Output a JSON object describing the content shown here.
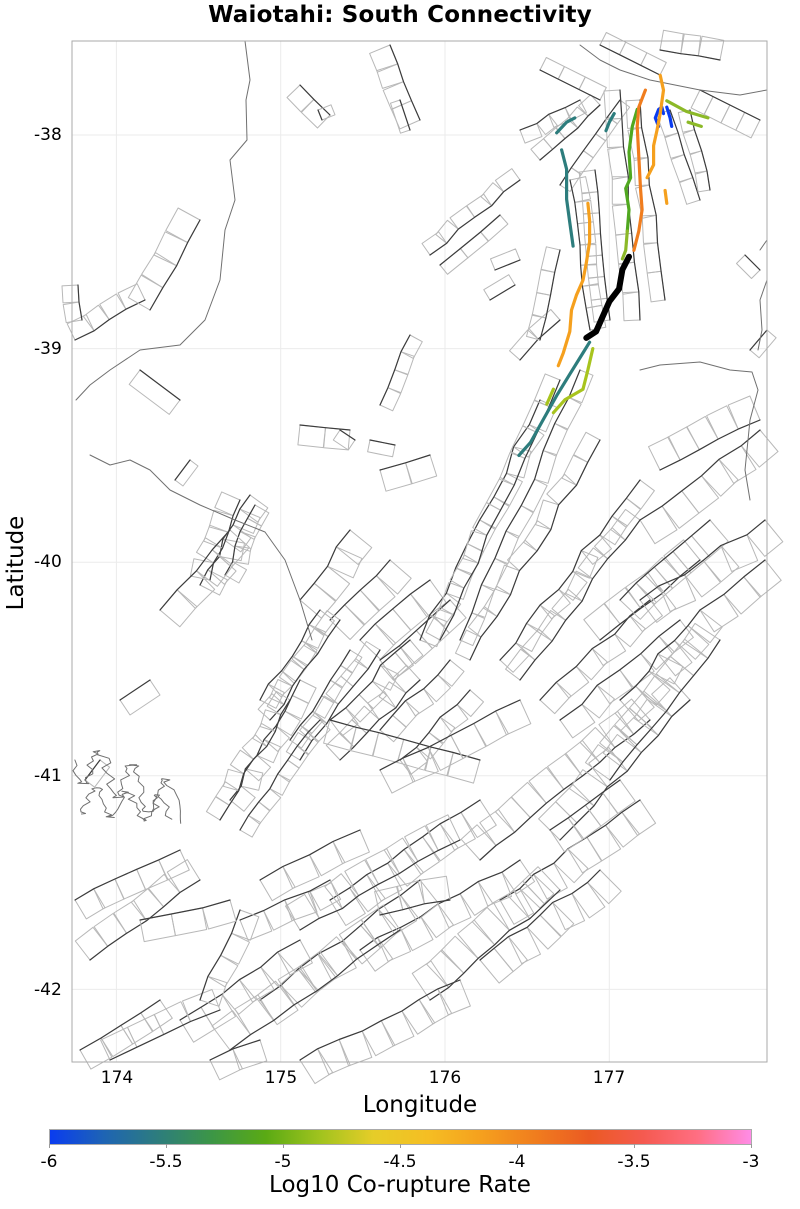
{
  "title": "Waiotahi: South Connectivity",
  "chart_data": {
    "type": "map",
    "title": "Waiotahi: South Connectivity",
    "xlabel": "Longitude",
    "ylabel": "Latitude",
    "xlim": [
      173.73,
      177.96
    ],
    "ylim": [
      -42.34,
      -37.56
    ],
    "x_ticks": [
      "174",
      "175",
      "176",
      "177"
    ],
    "x_tick_values": [
      174,
      175,
      176,
      177
    ],
    "y_ticks": [
      "-38",
      "-39",
      "-40",
      "-41",
      "-42"
    ],
    "y_tick_values": [
      -38,
      -39,
      -40,
      -41,
      -42
    ],
    "grid": true,
    "colorbar": {
      "label": "Log10 Co-rupture Rate",
      "range": [
        -6,
        -3
      ],
      "ticks": [
        "-6",
        "-5.5",
        "-5",
        "-4.5",
        "-4",
        "-3.5",
        "-3"
      ],
      "tick_values": [
        -6,
        -5.5,
        -5,
        -4.5,
        -4,
        -3.5,
        -3
      ],
      "colors": [
        "#0a3cf0",
        "#1e64b4",
        "#2d7d7d",
        "#3c9646",
        "#5aaa14",
        "#a0c31e",
        "#e6cd28",
        "#f5be23",
        "#f5a01e",
        "#f07d1e",
        "#eb5a23",
        "#f55a50",
        "#ff6e82",
        "#ff8ce6"
      ],
      "position": "bottom"
    },
    "source_fault": {
      "name": "Waiotahi",
      "color": "#000000",
      "trace": [
        [
          177.12,
          -38.57
        ],
        [
          177.08,
          -38.63
        ],
        [
          177.06,
          -38.72
        ],
        [
          177.0,
          -38.78
        ],
        [
          176.96,
          -38.85
        ],
        [
          176.92,
          -38.92
        ],
        [
          176.86,
          -38.95
        ]
      ]
    },
    "corupture_segments": [
      {
        "log_rate": -5.9,
        "color": "#0a3cf0",
        "trace": [
          [
            177.3,
            -37.96
          ],
          [
            177.28,
            -37.92
          ],
          [
            177.3,
            -37.88
          ],
          [
            177.32,
            -37.87
          ],
          [
            177.33,
            -37.9
          ]
        ]
      },
      {
        "log_rate": -5.9,
        "color": "#0a3cf0",
        "trace": [
          [
            177.35,
            -37.87
          ],
          [
            177.37,
            -37.92
          ],
          [
            177.38,
            -37.96
          ]
        ]
      },
      {
        "log_rate": -5.6,
        "color": "#2d7d7d",
        "trace": [
          [
            176.68,
            -37.99
          ],
          [
            176.74,
            -37.94
          ],
          [
            176.79,
            -37.92
          ]
        ]
      },
      {
        "log_rate": -5.6,
        "color": "#2d7d7d",
        "trace": [
          [
            176.98,
            -37.98
          ],
          [
            177.0,
            -37.94
          ],
          [
            177.03,
            -37.9
          ]
        ]
      },
      {
        "log_rate": -5.5,
        "color": "#2d7d7d",
        "trace": [
          [
            176.71,
            -38.07
          ],
          [
            176.74,
            -38.16
          ],
          [
            176.74,
            -38.3
          ],
          [
            176.76,
            -38.41
          ],
          [
            176.78,
            -38.52
          ]
        ]
      },
      {
        "log_rate": -5.5,
        "color": "#2d7d7d",
        "trace": [
          [
            176.88,
            -38.97
          ],
          [
            176.84,
            -39.02
          ],
          [
            176.76,
            -39.12
          ],
          [
            176.68,
            -39.22
          ],
          [
            176.6,
            -39.33
          ],
          [
            176.52,
            -39.44
          ],
          [
            176.45,
            -39.5
          ]
        ]
      },
      {
        "log_rate": -5.0,
        "color": "#50a820",
        "trace": [
          [
            177.17,
            -37.88
          ],
          [
            177.14,
            -37.96
          ],
          [
            177.12,
            -38.08
          ],
          [
            177.13,
            -38.2
          ],
          [
            177.1,
            -38.25
          ],
          [
            177.12,
            -38.35
          ],
          [
            177.11,
            -38.45
          ]
        ]
      },
      {
        "log_rate": -4.8,
        "color": "#8cb928",
        "trace": [
          [
            177.11,
            -38.45
          ],
          [
            177.1,
            -38.54
          ],
          [
            177.08,
            -38.58
          ]
        ]
      },
      {
        "log_rate": -4.8,
        "color": "#8cb928",
        "trace": [
          [
            177.35,
            -37.84
          ],
          [
            177.47,
            -37.89
          ],
          [
            177.6,
            -37.92
          ]
        ]
      },
      {
        "log_rate": -4.8,
        "color": "#8cb928",
        "trace": [
          [
            177.48,
            -37.94
          ],
          [
            177.56,
            -37.96
          ]
        ]
      },
      {
        "log_rate": -4.7,
        "color": "#a8c41e",
        "trace": [
          [
            176.9,
            -39.0
          ],
          [
            176.87,
            -39.1
          ],
          [
            176.84,
            -39.19
          ],
          [
            176.73,
            -39.24
          ],
          [
            176.66,
            -39.3
          ]
        ]
      },
      {
        "log_rate": -4.7,
        "color": "#a8c41e",
        "trace": [
          [
            176.62,
            -39.26
          ],
          [
            176.66,
            -39.19
          ]
        ]
      },
      {
        "log_rate": -4.2,
        "color": "#f5a01e",
        "trace": [
          [
            177.31,
            -37.72
          ],
          [
            177.33,
            -37.79
          ],
          [
            177.31,
            -37.9
          ],
          [
            177.29,
            -37.98
          ],
          [
            177.27,
            -38.05
          ],
          [
            177.27,
            -38.14
          ],
          [
            177.23,
            -38.2
          ]
        ]
      },
      {
        "log_rate": -4.2,
        "color": "#f5a01e",
        "trace": [
          [
            176.87,
            -38.32
          ],
          [
            176.88,
            -38.4
          ],
          [
            176.88,
            -38.5
          ],
          [
            176.86,
            -38.6
          ],
          [
            176.84,
            -38.68
          ],
          [
            176.8,
            -38.75
          ],
          [
            176.77,
            -38.82
          ],
          [
            176.76,
            -38.92
          ],
          [
            176.72,
            -39.02
          ],
          [
            176.69,
            -39.08
          ]
        ]
      },
      {
        "log_rate": -4.2,
        "color": "#f5a01e",
        "trace": [
          [
            177.34,
            -38.26
          ],
          [
            177.35,
            -38.32
          ]
        ]
      },
      {
        "log_rate": -3.8,
        "color": "#f07d1e",
        "trace": [
          [
            177.22,
            -37.79
          ],
          [
            177.18,
            -37.87
          ],
          [
            177.17,
            -37.96
          ],
          [
            177.18,
            -38.1
          ],
          [
            177.19,
            -38.25
          ],
          [
            177.2,
            -38.35
          ],
          [
            177.18,
            -38.45
          ],
          [
            177.15,
            -38.54
          ]
        ]
      }
    ]
  }
}
